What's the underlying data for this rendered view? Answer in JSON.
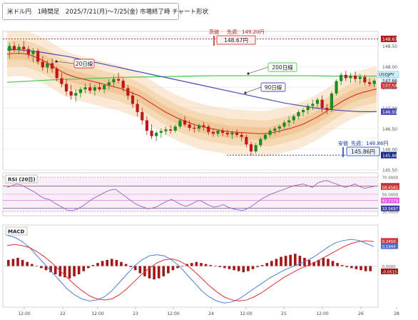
{
  "title": "米ドル円　1時間足　2025/7/21(月)～7/25(金) 市場終了時 チャート形状",
  "main": {
    "ylim": [
      145.5,
      148.85
    ],
    "ticks": [
      "148.67",
      "148.50",
      "148.00",
      "147.77",
      "147.66",
      "147.54",
      "147.50",
      "147.00",
      "146.91",
      "146.50",
      "146.00",
      "145.86",
      "145.50"
    ],
    "tick_values": [
      148.67,
      148.5,
      148.0,
      147.77,
      147.66,
      147.54,
      147.5,
      147.0,
      146.91,
      146.5,
      146.0,
      145.86,
      145.5
    ],
    "high": {
      "label": "高値",
      "value_label": "148.67円",
      "prev_label": "先週：149.20円",
      "value": 148.67
    },
    "low": {
      "label": "安値",
      "value_label": "145.86円",
      "prev_label": "先週：146.86円",
      "value": 145.86
    },
    "ma_labels": {
      "ma20": "20日線",
      "ma200": "200日線",
      "ma90": "90日線"
    },
    "symbol_label": "USDJPY",
    "candles": [
      [
        148.38,
        148.58,
        148.2,
        148.5
      ],
      [
        148.5,
        148.6,
        148.35,
        148.4
      ],
      [
        148.4,
        148.55,
        148.3,
        148.48
      ],
      [
        148.48,
        148.62,
        148.35,
        148.42
      ],
      [
        148.42,
        148.5,
        148.2,
        148.3
      ],
      [
        148.3,
        148.45,
        148.1,
        148.38
      ],
      [
        148.38,
        148.44,
        148.05,
        148.12
      ],
      [
        148.12,
        148.25,
        147.9,
        147.98
      ],
      [
        147.98,
        148.15,
        147.85,
        148.08
      ],
      [
        148.08,
        148.2,
        147.85,
        147.95
      ],
      [
        147.95,
        148.0,
        147.65,
        147.72
      ],
      [
        147.72,
        147.85,
        147.5,
        147.58
      ],
      [
        147.58,
        147.7,
        147.3,
        147.4
      ],
      [
        147.4,
        147.55,
        147.2,
        147.3
      ],
      [
        147.3,
        147.45,
        147.15,
        147.36
      ],
      [
        147.36,
        147.5,
        147.25,
        147.45
      ],
      [
        147.45,
        147.6,
        147.35,
        147.5
      ],
      [
        147.5,
        147.6,
        147.35,
        147.42
      ],
      [
        147.42,
        147.55,
        147.3,
        147.5
      ],
      [
        147.5,
        147.62,
        147.4,
        147.45
      ],
      [
        147.45,
        147.58,
        147.35,
        147.55
      ],
      [
        147.55,
        147.7,
        147.45,
        147.62
      ],
      [
        147.62,
        147.78,
        147.5,
        147.7
      ],
      [
        147.7,
        147.85,
        147.6,
        147.66
      ],
      [
        147.66,
        147.72,
        147.4,
        147.48
      ],
      [
        147.48,
        147.55,
        147.2,
        147.3
      ],
      [
        147.3,
        147.4,
        147.0,
        147.1
      ],
      [
        147.1,
        147.2,
        146.8,
        146.9
      ],
      [
        146.9,
        147.0,
        146.6,
        146.7
      ],
      [
        146.7,
        146.8,
        146.35,
        146.45
      ],
      [
        146.45,
        146.6,
        146.25,
        146.32
      ],
      [
        146.32,
        146.45,
        146.2,
        146.4
      ],
      [
        146.4,
        146.5,
        146.28,
        146.44
      ],
      [
        146.44,
        146.55,
        146.35,
        146.48
      ],
      [
        146.48,
        146.58,
        146.38,
        146.45
      ],
      [
        146.45,
        146.6,
        146.4,
        146.55
      ],
      [
        146.55,
        146.75,
        146.5,
        146.7
      ],
      [
        146.7,
        146.8,
        146.55,
        146.6
      ],
      [
        146.6,
        146.7,
        146.45,
        146.52
      ],
      [
        146.52,
        146.6,
        146.4,
        146.5
      ],
      [
        146.5,
        146.62,
        146.42,
        146.58
      ],
      [
        146.58,
        146.66,
        146.45,
        146.55
      ],
      [
        146.55,
        146.6,
        146.35,
        146.42
      ],
      [
        146.42,
        146.5,
        146.3,
        146.38
      ],
      [
        146.38,
        146.48,
        146.3,
        146.45
      ],
      [
        146.45,
        146.52,
        146.32,
        146.4
      ],
      [
        146.4,
        146.48,
        146.3,
        146.36
      ],
      [
        146.36,
        146.45,
        146.25,
        146.4
      ],
      [
        146.4,
        146.48,
        146.3,
        146.35
      ],
      [
        146.35,
        146.42,
        146.2,
        146.3
      ],
      [
        146.3,
        146.35,
        146.05,
        146.12
      ],
      [
        146.12,
        146.18,
        145.86,
        145.95
      ],
      [
        145.95,
        146.15,
        145.9,
        146.1
      ],
      [
        146.1,
        146.3,
        146.05,
        146.25
      ],
      [
        146.25,
        146.4,
        146.2,
        146.35
      ],
      [
        146.35,
        146.5,
        146.3,
        146.45
      ],
      [
        146.45,
        146.55,
        146.35,
        146.5
      ],
      [
        146.5,
        146.6,
        146.4,
        146.55
      ],
      [
        146.55,
        146.7,
        146.5,
        146.65
      ],
      [
        146.65,
        146.8,
        146.55,
        146.7
      ],
      [
        146.7,
        146.85,
        146.62,
        146.8
      ],
      [
        146.8,
        146.95,
        146.72,
        146.9
      ],
      [
        146.9,
        147.0,
        146.8,
        146.95
      ],
      [
        146.95,
        147.1,
        146.85,
        147.05
      ],
      [
        147.05,
        147.2,
        146.95,
        147.1
      ],
      [
        147.1,
        147.25,
        147.0,
        147.2
      ],
      [
        147.2,
        147.3,
        146.9,
        147.0
      ],
      [
        147.0,
        147.1,
        146.85,
        146.95
      ],
      [
        146.95,
        147.4,
        146.9,
        147.35
      ],
      [
        147.35,
        147.7,
        147.3,
        147.65
      ],
      [
        147.65,
        147.85,
        147.55,
        147.8
      ],
      [
        147.8,
        147.9,
        147.65,
        147.72
      ],
      [
        147.72,
        147.85,
        147.6,
        147.78
      ],
      [
        147.78,
        147.88,
        147.62,
        147.7
      ],
      [
        147.7,
        147.82,
        147.58,
        147.75
      ],
      [
        147.75,
        147.8,
        147.55,
        147.62
      ],
      [
        147.62,
        147.72,
        147.52,
        147.58
      ],
      [
        147.58,
        147.7,
        147.5,
        147.66
      ]
    ],
    "ma20": [
      148.3,
      148.32,
      148.32,
      148.3,
      148.25,
      148.18,
      148.1,
      148.0,
      147.9,
      147.82,
      147.76,
      147.72,
      147.68,
      147.64,
      147.6,
      147.56,
      147.52,
      147.48,
      147.42,
      147.36,
      147.3,
      147.2,
      147.1,
      147.0,
      146.9,
      146.82,
      146.74,
      146.68,
      146.62,
      146.57,
      146.53,
      146.5,
      146.47,
      146.44,
      146.42,
      146.41,
      146.4,
      146.39,
      146.38,
      146.38,
      146.4,
      146.43,
      146.47,
      146.51,
      146.56,
      146.62,
      146.7,
      146.78,
      146.88,
      146.98,
      147.08,
      147.18,
      147.26,
      147.33,
      147.38,
      147.42,
      147.46
    ],
    "ma200": [
      147.62,
      147.65,
      147.68,
      147.7,
      147.72,
      147.74,
      147.75,
      147.76,
      147.77,
      147.78,
      147.78,
      147.78,
      147.78,
      147.78,
      147.77,
      147.77,
      147.77
    ],
    "ma90": [
      148.42,
      148.4,
      148.36,
      148.3,
      148.24,
      148.16,
      148.08,
      148.0,
      147.92,
      147.84,
      147.76,
      147.68,
      147.6,
      147.52,
      147.44,
      147.36,
      147.28,
      147.2,
      147.12,
      147.06,
      147.0,
      146.96,
      146.93,
      146.91,
      146.91
    ]
  },
  "rsi": {
    "label": "RSI (20日)",
    "ticks": [
      "70.0000",
      "59.6570",
      "58.4581",
      "50.0000",
      "42.7779",
      "33.5697",
      "30.0000"
    ],
    "tick_values": [
      70,
      59.657,
      58.4581,
      50,
      42.7779,
      33.5697,
      30
    ],
    "values": [
      58,
      60,
      62,
      61,
      58,
      55,
      52,
      48,
      45,
      44,
      40,
      37,
      34,
      31,
      31,
      33,
      36,
      40,
      44,
      47,
      50,
      53,
      55,
      56,
      52,
      48,
      44,
      40,
      37,
      35,
      33,
      34,
      36,
      39,
      42,
      44,
      41,
      38,
      36,
      38,
      41,
      43,
      40,
      37,
      35,
      36,
      38,
      35,
      33,
      32,
      31,
      33,
      36,
      40,
      44,
      47,
      50,
      52,
      54,
      56,
      58,
      60,
      61,
      62,
      60,
      58,
      63,
      65,
      66,
      64,
      62,
      60,
      58,
      60,
      62,
      59,
      57,
      58,
      59
    ]
  },
  "macd": {
    "label": "MACD",
    "ticks": [
      "0.2450",
      "0.1944",
      "0.0000",
      "-0.0515"
    ],
    "tick_values": [
      0.245,
      0.1944,
      0.0,
      -0.0515
    ],
    "hist": [
      0.06,
      0.07,
      0.08,
      0.06,
      0.04,
      0.02,
      0.0,
      -0.02,
      -0.04,
      -0.06,
      -0.08,
      -0.1,
      -0.11,
      -0.12,
      -0.1,
      -0.08,
      -0.05,
      -0.02,
      0.01,
      0.03,
      0.05,
      0.06,
      0.07,
      0.06,
      0.04,
      0.02,
      -0.01,
      -0.04,
      -0.07,
      -0.1,
      -0.12,
      -0.13,
      -0.12,
      -0.1,
      -0.07,
      -0.04,
      -0.02,
      0.0,
      0.02,
      0.03,
      0.04,
      0.03,
      0.02,
      0.01,
      0.0,
      -0.01,
      -0.02,
      -0.03,
      -0.04,
      -0.05,
      -0.06,
      -0.05,
      -0.03,
      -0.01,
      0.01,
      0.03,
      0.05,
      0.07,
      0.09,
      0.1,
      0.11,
      0.12,
      0.1,
      0.08,
      0.06,
      0.04,
      0.06,
      0.08,
      0.07,
      0.05,
      0.03,
      0.01,
      -0.01,
      -0.02,
      -0.03,
      -0.04,
      -0.05,
      -0.05
    ],
    "macd_line": [
      0.3,
      0.28,
      0.24,
      0.18,
      0.1,
      0.02,
      -0.06,
      -0.14,
      -0.22,
      -0.28,
      -0.32,
      -0.34,
      -0.33,
      -0.3,
      -0.24,
      -0.16,
      -0.08,
      0.0,
      0.06,
      0.1,
      0.11,
      0.1,
      0.06,
      0.0,
      -0.08,
      -0.16,
      -0.24,
      -0.3,
      -0.34,
      -0.36,
      -0.35,
      -0.32,
      -0.27,
      -0.22,
      -0.17,
      -0.12,
      -0.08,
      -0.04,
      -0.01,
      0.02,
      0.05,
      0.09,
      0.14,
      0.19,
      0.23,
      0.25,
      0.26,
      0.25,
      0.22,
      0.19
    ],
    "signal_line": [
      0.2,
      0.21,
      0.2,
      0.18,
      0.14,
      0.09,
      0.03,
      -0.04,
      -0.11,
      -0.18,
      -0.24,
      -0.29,
      -0.32,
      -0.33,
      -0.32,
      -0.28,
      -0.22,
      -0.15,
      -0.08,
      -0.02,
      0.03,
      0.06,
      0.07,
      0.05,
      0.01,
      -0.05,
      -0.12,
      -0.19,
      -0.25,
      -0.3,
      -0.33,
      -0.34,
      -0.33,
      -0.3,
      -0.26,
      -0.21,
      -0.16,
      -0.11,
      -0.07,
      -0.03,
      0.0,
      0.03,
      0.07,
      0.11,
      0.15,
      0.19,
      0.22,
      0.24,
      0.245,
      0.24
    ]
  },
  "x_axis": [
    "12:00",
    "22",
    "12:00",
    "23",
    "12:00",
    "24",
    "12:00",
    "25",
    "12:00",
    "26",
    "28"
  ],
  "colors": {
    "up": "#1f8a1f",
    "down": "#c01818",
    "ma20": "#d9383a",
    "ma200": "#57c957",
    "ma90": "#4a4ab8",
    "band": "#f2c893",
    "high_line": "#b01c1c",
    "low_line": "#1a2a8a"
  }
}
